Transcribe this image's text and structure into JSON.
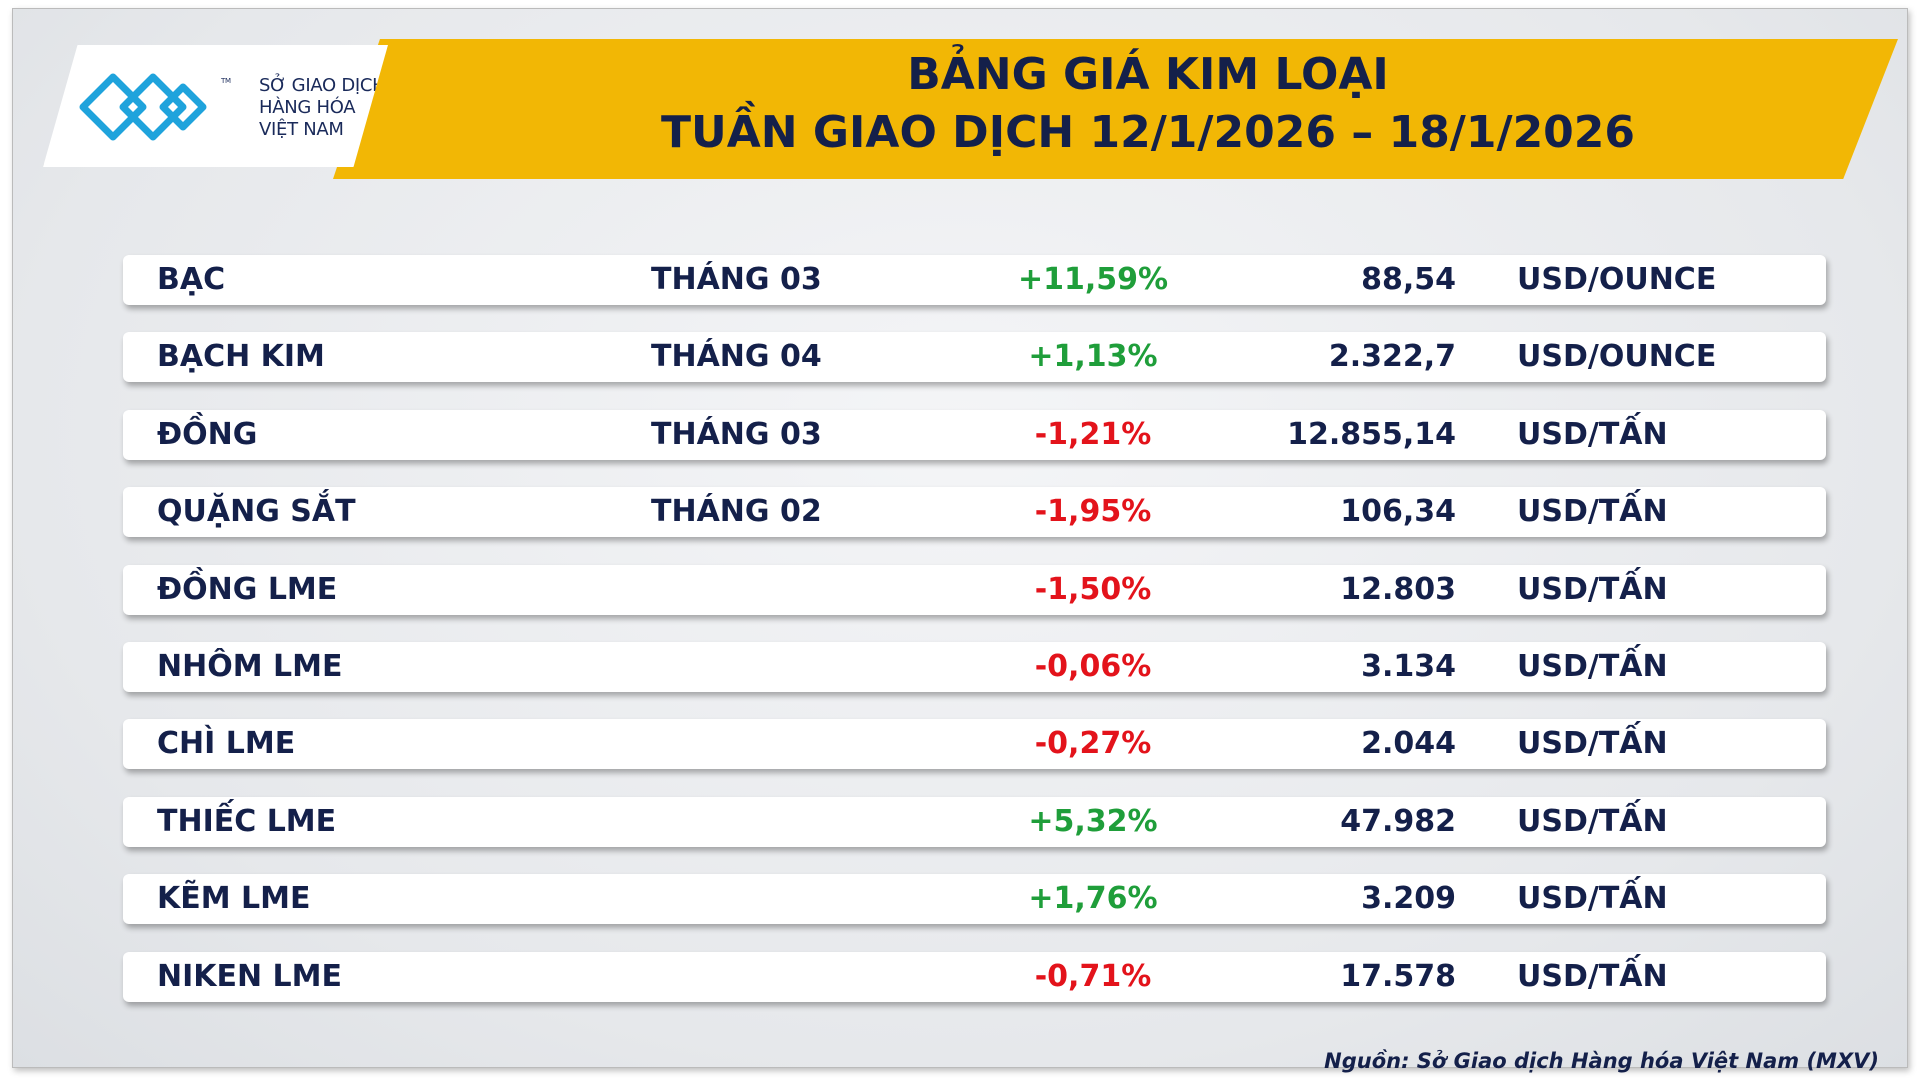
{
  "logo": {
    "line1": "SỞ GIAO DỊCH",
    "line2": "HÀNG HÓA",
    "line3": "VIỆT NAM",
    "tm": "TM"
  },
  "header": {
    "title_line1": "BẢNG GIÁ KIM LOẠI",
    "title_line2": "TUẦN GIAO DỊCH 12/1/2026 – 18/1/2026"
  },
  "table": {
    "rows": [
      {
        "name": "BẠC",
        "month": "THÁNG 03",
        "change": "+11,59%",
        "price": "88,54",
        "unit": "USD/OUNCE"
      },
      {
        "name": "BẠCH KIM",
        "month": "THÁNG 04",
        "change": "+1,13%",
        "price": "2.322,7",
        "unit": "USD/OUNCE"
      },
      {
        "name": "ĐỒNG",
        "month": "THÁNG 03",
        "change": "-1,21%",
        "price": "12.855,14",
        "unit": "USD/TẤN"
      },
      {
        "name": "QUẶNG SẮT",
        "month": "THÁNG 02",
        "change": "-1,95%",
        "price": "106,34",
        "unit": "USD/TẤN"
      },
      {
        "name": "ĐỒNG LME",
        "change": "-1,50%",
        "price": "12.803",
        "unit": "USD/TẤN"
      },
      {
        "name": "NHÔM LME",
        "change": "-0,06%",
        "price": "3.134",
        "unit": "USD/TẤN"
      },
      {
        "name": "CHÌ LME",
        "change": "-0,27%",
        "price": "2.044",
        "unit": "USD/TẤN"
      },
      {
        "name": "THIẾC LME",
        "change": "+5,32%",
        "price": "47.982",
        "unit": "USD/TẤN"
      },
      {
        "name": "KẼM LME",
        "change": "+1,76%",
        "price": "3.209",
        "unit": "USD/TẤN"
      },
      {
        "name": "NIKEN LME",
        "change": "-0,71%",
        "price": "17.578",
        "unit": "USD/TẤN"
      }
    ]
  },
  "footer": {
    "source": "Nguồn: Sở Giao dịch Hàng hóa Việt Nam (MXV)"
  }
}
